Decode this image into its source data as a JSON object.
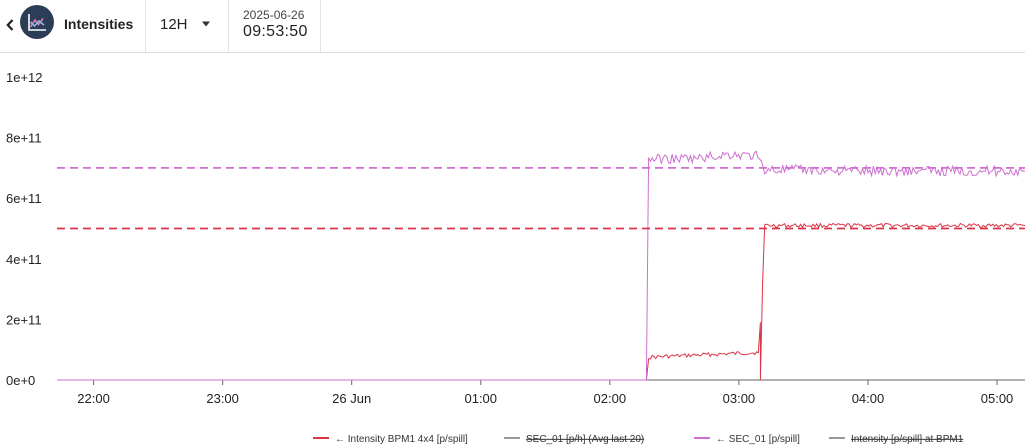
{
  "header": {
    "back_icon": "chevron-left-icon",
    "app_icon": "line-chart-icon",
    "title": "Intensities",
    "range": "12H",
    "range_caret_icon": "caret-down-icon",
    "date": "2025-06-26",
    "time": "09:53:50"
  },
  "chart_data": {
    "type": "line",
    "title": "",
    "xlabel": "",
    "ylabel": "",
    "x_unit": "hours",
    "xlim": [
      "2025-06-25 21:43",
      "2025-06-26 05:13"
    ],
    "ylim": [
      0,
      1000000000000.0
    ],
    "yticks": [
      "0e+0",
      "2e+11",
      "4e+11",
      "6e+11",
      "8e+11",
      "1e+12"
    ],
    "yticks_values": [
      0,
      200000000000.0,
      400000000000.0,
      600000000000.0,
      800000000000.0,
      1000000000000.0
    ],
    "xticks": [
      "22:00",
      "23:00",
      "26 Jun",
      "01:00",
      "02:00",
      "03:00",
      "04:00",
      "05:00"
    ],
    "xticks_values": [
      "2025-06-25 22:00",
      "2025-06-25 23:00",
      "2025-06-26 00:00",
      "2025-06-26 01:00",
      "2025-06-26 02:00",
      "2025-06-26 03:00",
      "2025-06-26 04:00",
      "2025-06-26 05:00"
    ],
    "grid": false,
    "legend_position": "bottom",
    "series": [
      {
        "name": "← Intensity BPM1 4x4 [p/spill]",
        "color": "#dc3545",
        "style": "solid",
        "points": [
          [
            "2025-06-25 21:43",
            0
          ],
          [
            "2025-06-26 02:17",
            0
          ],
          [
            "2025-06-26 02:18",
            75000000000.0
          ],
          [
            "2025-06-26 02:40",
            82000000000.0
          ],
          [
            "2025-06-26 03:00",
            88000000000.0
          ],
          [
            "2025-06-26 03:09",
            90000000000.0
          ],
          [
            "2025-06-26 03:10",
            190000000000.0
          ],
          [
            "2025-06-26 03:10",
            0
          ],
          [
            "2025-06-26 03:11",
            320000000000.0
          ],
          [
            "2025-06-26 03:12",
            510000000000.0
          ],
          [
            "2025-06-26 05:13",
            510000000000.0
          ]
        ]
      },
      {
        "name": "SEC_01 [p/h] (Avg last 20)",
        "color": "#999999",
        "style": "solid",
        "hidden": true,
        "points": []
      },
      {
        "name": "← SEC_01 [p/spill]",
        "color": "#cf6fd1",
        "style": "solid",
        "points": [
          [
            "2025-06-25 21:43",
            0
          ],
          [
            "2025-06-26 02:17",
            0
          ],
          [
            "2025-06-26 02:18",
            730000000000.0
          ],
          [
            "2025-06-26 02:40",
            730000000000.0
          ],
          [
            "2025-06-26 02:55",
            745000000000.0
          ],
          [
            "2025-06-26 03:08",
            740000000000.0
          ],
          [
            "2025-06-26 03:12",
            695000000000.0
          ],
          [
            "2025-06-26 04:00",
            690000000000.0
          ],
          [
            "2025-06-26 05:13",
            690000000000.0
          ]
        ]
      },
      {
        "name": "Intensity [p/spill] at BPM1",
        "color": "#999999",
        "style": "solid",
        "hidden": true,
        "points": []
      },
      {
        "name": "",
        "color": "#cf6fd1",
        "style": "dashed",
        "points": [
          [
            "2025-06-25 21:43",
            700000000000.0
          ],
          [
            "2025-06-26 05:13",
            700000000000.0
          ]
        ]
      },
      {
        "name": "",
        "color": "#dc3545",
        "style": "dashed",
        "points": [
          [
            "2025-06-25 21:43",
            500000000000.0
          ],
          [
            "2025-06-26 05:13",
            500000000000.0
          ]
        ]
      }
    ]
  }
}
